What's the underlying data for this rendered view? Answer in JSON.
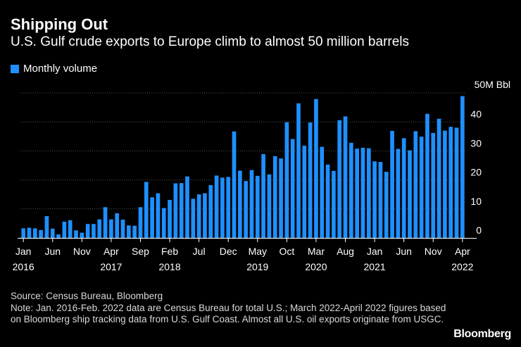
{
  "title": "Shipping Out",
  "subtitle": "U.S. Gulf crude exports to Europe climb to almost 50 million barrels",
  "legend": "Monthly volume",
  "source": "Source: Census Bureau, Bloomberg",
  "note": "Note: Jan. 2016-Feb. 2022 data are Census Bureau for total U.S.; March 2022-April 2022 figures based on Bloomberg ship tracking data from U.S. Gulf Coast. Almost all U.S. oil exports originate from USGC.",
  "brand": "Bloomberg",
  "colors": {
    "bar": "#1e90ff",
    "grid": "#555555",
    "background": "#000000"
  },
  "chart_data": {
    "type": "bar",
    "title": "Shipping Out",
    "ylabel": "50M Bbl",
    "ylim": [
      0,
      50
    ],
    "yticks": [
      0,
      10,
      20,
      30,
      40
    ],
    "y_unit_label": "50M Bbl",
    "x_tick_labels": [
      {
        "index": 0,
        "month": "Jan",
        "year": "2016"
      },
      {
        "index": 5,
        "month": "Jun",
        "year": ""
      },
      {
        "index": 10,
        "month": "Nov",
        "year": ""
      },
      {
        "index": 15,
        "month": "Apr",
        "year": "2017"
      },
      {
        "index": 20,
        "month": "Sep",
        "year": ""
      },
      {
        "index": 25,
        "month": "Feb",
        "year": "2018"
      },
      {
        "index": 30,
        "month": "Jul",
        "year": ""
      },
      {
        "index": 35,
        "month": "Dec",
        "year": ""
      },
      {
        "index": 40,
        "month": "May",
        "year": "2019"
      },
      {
        "index": 45,
        "month": "Oct",
        "year": ""
      },
      {
        "index": 50,
        "month": "Mar",
        "year": "2020"
      },
      {
        "index": 55,
        "month": "Aug",
        "year": ""
      },
      {
        "index": 60,
        "month": "Jan",
        "year": "2021"
      },
      {
        "index": 65,
        "month": "Jun",
        "year": ""
      },
      {
        "index": 70,
        "month": "Nov",
        "year": ""
      },
      {
        "index": 75,
        "month": "Apr",
        "year": "2022"
      }
    ],
    "series": [
      {
        "name": "Monthly volume",
        "values": [
          3.3,
          3.5,
          3.3,
          2.7,
          7.5,
          3.2,
          1.2,
          5.6,
          6.1,
          2.6,
          1.8,
          4.8,
          4.8,
          6.4,
          10.6,
          6.4,
          8.5,
          6.3,
          4.3,
          4.2,
          10.6,
          19.3,
          14.0,
          15.4,
          10.3,
          13.1,
          18.8,
          18.9,
          21.2,
          13.5,
          15.0,
          15.4,
          18.2,
          21.5,
          20.8,
          21.0,
          36.7,
          23.2,
          19.6,
          23.4,
          21.4,
          28.9,
          21.9,
          28.2,
          27.4,
          39.9,
          34.1,
          46.4,
          31.8,
          39.8,
          47.9,
          31.4,
          25.3,
          23.1,
          40.6,
          41.9,
          32.8,
          30.8,
          31.1,
          30.9,
          26.4,
          26.2,
          22.8,
          36.9,
          30.7,
          34.4,
          30.2,
          36.8,
          34.9,
          42.8,
          36.2,
          41.1,
          37.0,
          38.3,
          38.0,
          48.9
        ]
      }
    ]
  }
}
